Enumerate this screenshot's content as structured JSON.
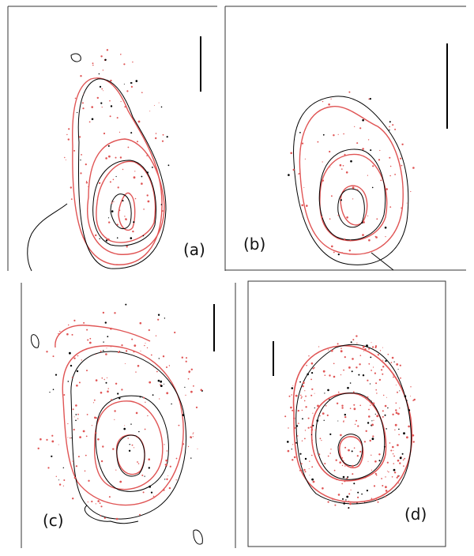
{
  "panels": [
    {
      "id": "a",
      "label": "(a)"
    },
    {
      "id": "b",
      "label": "(b)"
    },
    {
      "id": "c",
      "label": "(c)"
    },
    {
      "id": "d",
      "label": "(d)"
    }
  ],
  "colors": {
    "black_contour": "#000000",
    "red_contour": "#e05555",
    "frame": "#333333",
    "background": "#ffffff"
  }
}
